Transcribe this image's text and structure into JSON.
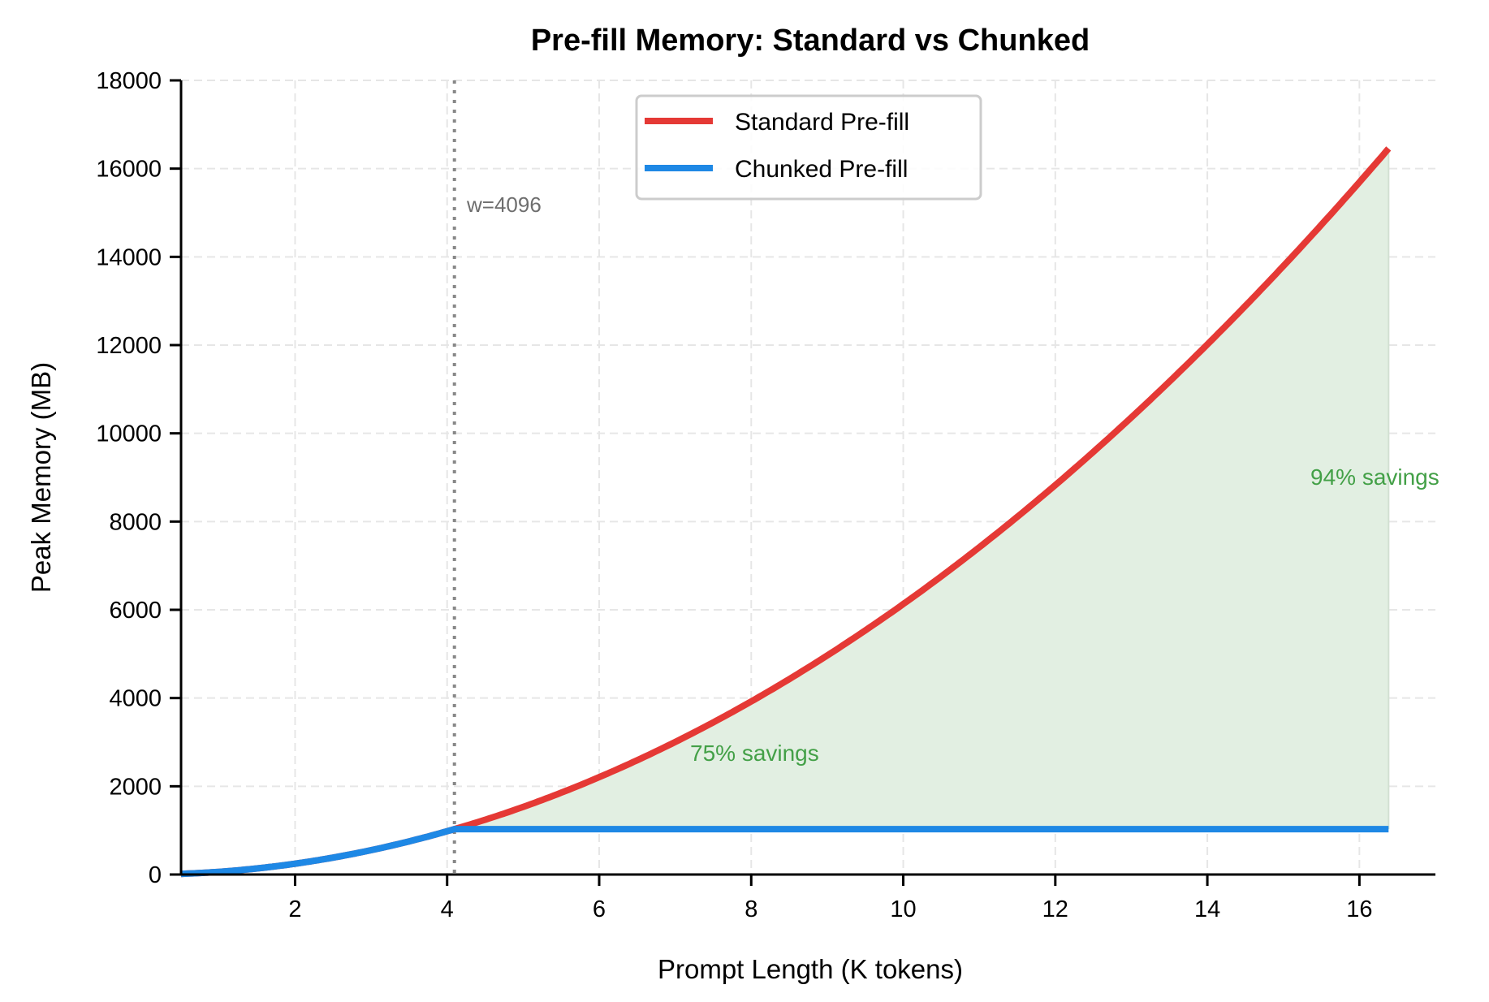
{
  "chart_data": {
    "type": "line",
    "title": "Pre-fill Memory: Standard vs Chunked",
    "xlabel": "Prompt Length (K tokens)",
    "ylabel": "Peak Memory (MB)",
    "xlim": [
      0.5,
      17.0
    ],
    "ylim": [
      0,
      18000
    ],
    "xticks": [
      2,
      4,
      6,
      8,
      10,
      12,
      14,
      16
    ],
    "yticks": [
      0,
      2000,
      4000,
      6000,
      8000,
      10000,
      12000,
      14000,
      16000,
      18000
    ],
    "grid": true,
    "legend_position": "upper center",
    "x": [
      0.5,
      1,
      2,
      3,
      4,
      4.096,
      5,
      6,
      7,
      8,
      9,
      10,
      11,
      12,
      13,
      14,
      15,
      16,
      16.384
    ],
    "series": [
      {
        "name": "Standard Pre-fill",
        "color": "#e53935",
        "values": [
          15,
          61,
          245,
          552,
          981,
          1028,
          1533,
          2207,
          3004,
          3923,
          4965,
          6130,
          7417,
          8827,
          10360,
          12015,
          13793,
          15693,
          16455
        ]
      },
      {
        "name": "Chunked Pre-fill",
        "color": "#1e88e5",
        "values": [
          15,
          61,
          245,
          552,
          981,
          1028,
          1028,
          1028,
          1028,
          1028,
          1028,
          1028,
          1028,
          1028,
          1028,
          1028,
          1028,
          1028,
          1028
        ]
      }
    ],
    "fill_between": {
      "x_from": 4.096,
      "x_to": 16.384,
      "color": "#e2efe2"
    },
    "vline": {
      "x": 4.096,
      "label": "w=4096",
      "style": "dotted",
      "color": "#888888"
    },
    "annotations": [
      {
        "text": "75% savings",
        "x": 8.2,
        "y": 2800,
        "color": "#43a047"
      },
      {
        "text": "94% savings",
        "x": 16.4,
        "y": 8900,
        "color": "#43a047"
      }
    ]
  },
  "labels": {
    "title": "Pre-fill Memory: Standard vs Chunked",
    "xlabel": "Prompt Length (K tokens)",
    "ylabel": "Peak Memory (MB)",
    "legend_standard": "Standard Pre-fill",
    "legend_chunked": "Chunked Pre-fill",
    "vline_label": "w=4096",
    "annot_75": "75% savings",
    "annot_94": "94% savings"
  }
}
